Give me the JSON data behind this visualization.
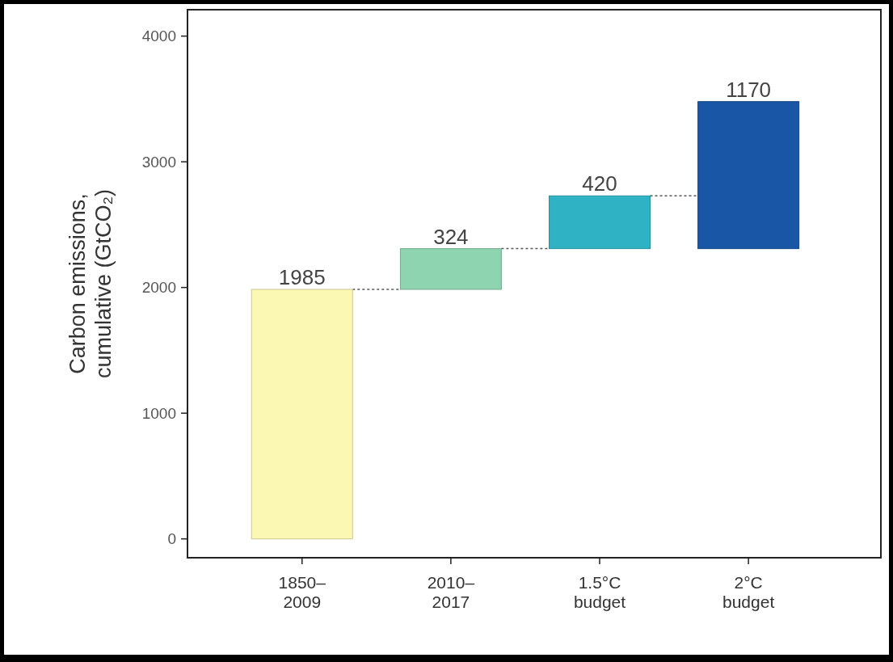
{
  "chart_data": {
    "type": "bar",
    "ylabel": "Carbon emissions,\ncumulative (GtCO₂)",
    "categories": [
      "1850–\n2009",
      "2010–\n2017",
      "1.5°C\nbudget",
      "2°C\nbudget"
    ],
    "values": [
      1985,
      324,
      420,
      1170
    ],
    "base": [
      0,
      1985,
      2309,
      2309
    ],
    "colors": [
      "#fbf8b4",
      "#8fd4b0",
      "#2fb2c4",
      "#1a56a6"
    ],
    "data_labels": true,
    "ylim": [
      -150,
      4210
    ],
    "yticks": [
      0,
      1000,
      2000,
      3000,
      4000
    ]
  }
}
